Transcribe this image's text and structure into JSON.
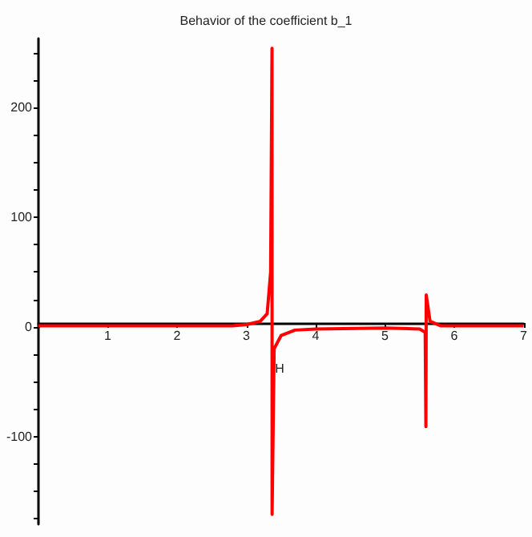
{
  "chart_data": {
    "type": "line",
    "title": "Behavior of the coefficient b_1",
    "x": [
      0,
      2.8,
      3.0,
      3.2,
      3.3,
      3.35,
      3.37,
      3.371,
      3.4,
      3.5,
      3.7,
      4,
      5,
      5.5,
      5.58,
      5.59,
      5.595,
      5.65,
      5.8,
      7
    ],
    "series": [
      {
        "color": "#ff0000",
        "values": [
          1,
          1,
          2,
          5,
          12,
          50,
          254,
          -171,
          -20,
          -8,
          -3,
          -2,
          -1,
          -2,
          -5,
          -91,
          29,
          5,
          1,
          1
        ]
      }
    ],
    "xlim": [
      0,
      7
    ],
    "xticks": [
      {
        "value": 0,
        "label": null
      },
      1,
      2,
      3,
      4,
      5,
      6,
      7
    ],
    "ylim": [
      -180,
      263
    ],
    "yticks": [
      {
        "value": -175,
        "label": null
      },
      {
        "value": -150,
        "label": null
      },
      {
        "value": -125,
        "label": null
      },
      -100,
      {
        "value": -75,
        "label": null
      },
      {
        "value": -50,
        "label": null
      },
      {
        "value": -25,
        "label": null
      },
      0,
      {
        "value": 25,
        "label": null
      },
      {
        "value": 50,
        "label": null
      },
      {
        "value": 75,
        "label": null
      },
      100,
      {
        "value": 125,
        "label": null
      },
      {
        "value": 150,
        "label": null
      },
      {
        "value": 175,
        "label": null
      },
      200,
      {
        "value": 225,
        "label": null
      },
      {
        "value": 250,
        "label": null
      }
    ],
    "annotations": [
      {
        "text": "H",
        "x": 3.48,
        "y": -42
      }
    ],
    "marker": "none",
    "line_style": "solid"
  }
}
